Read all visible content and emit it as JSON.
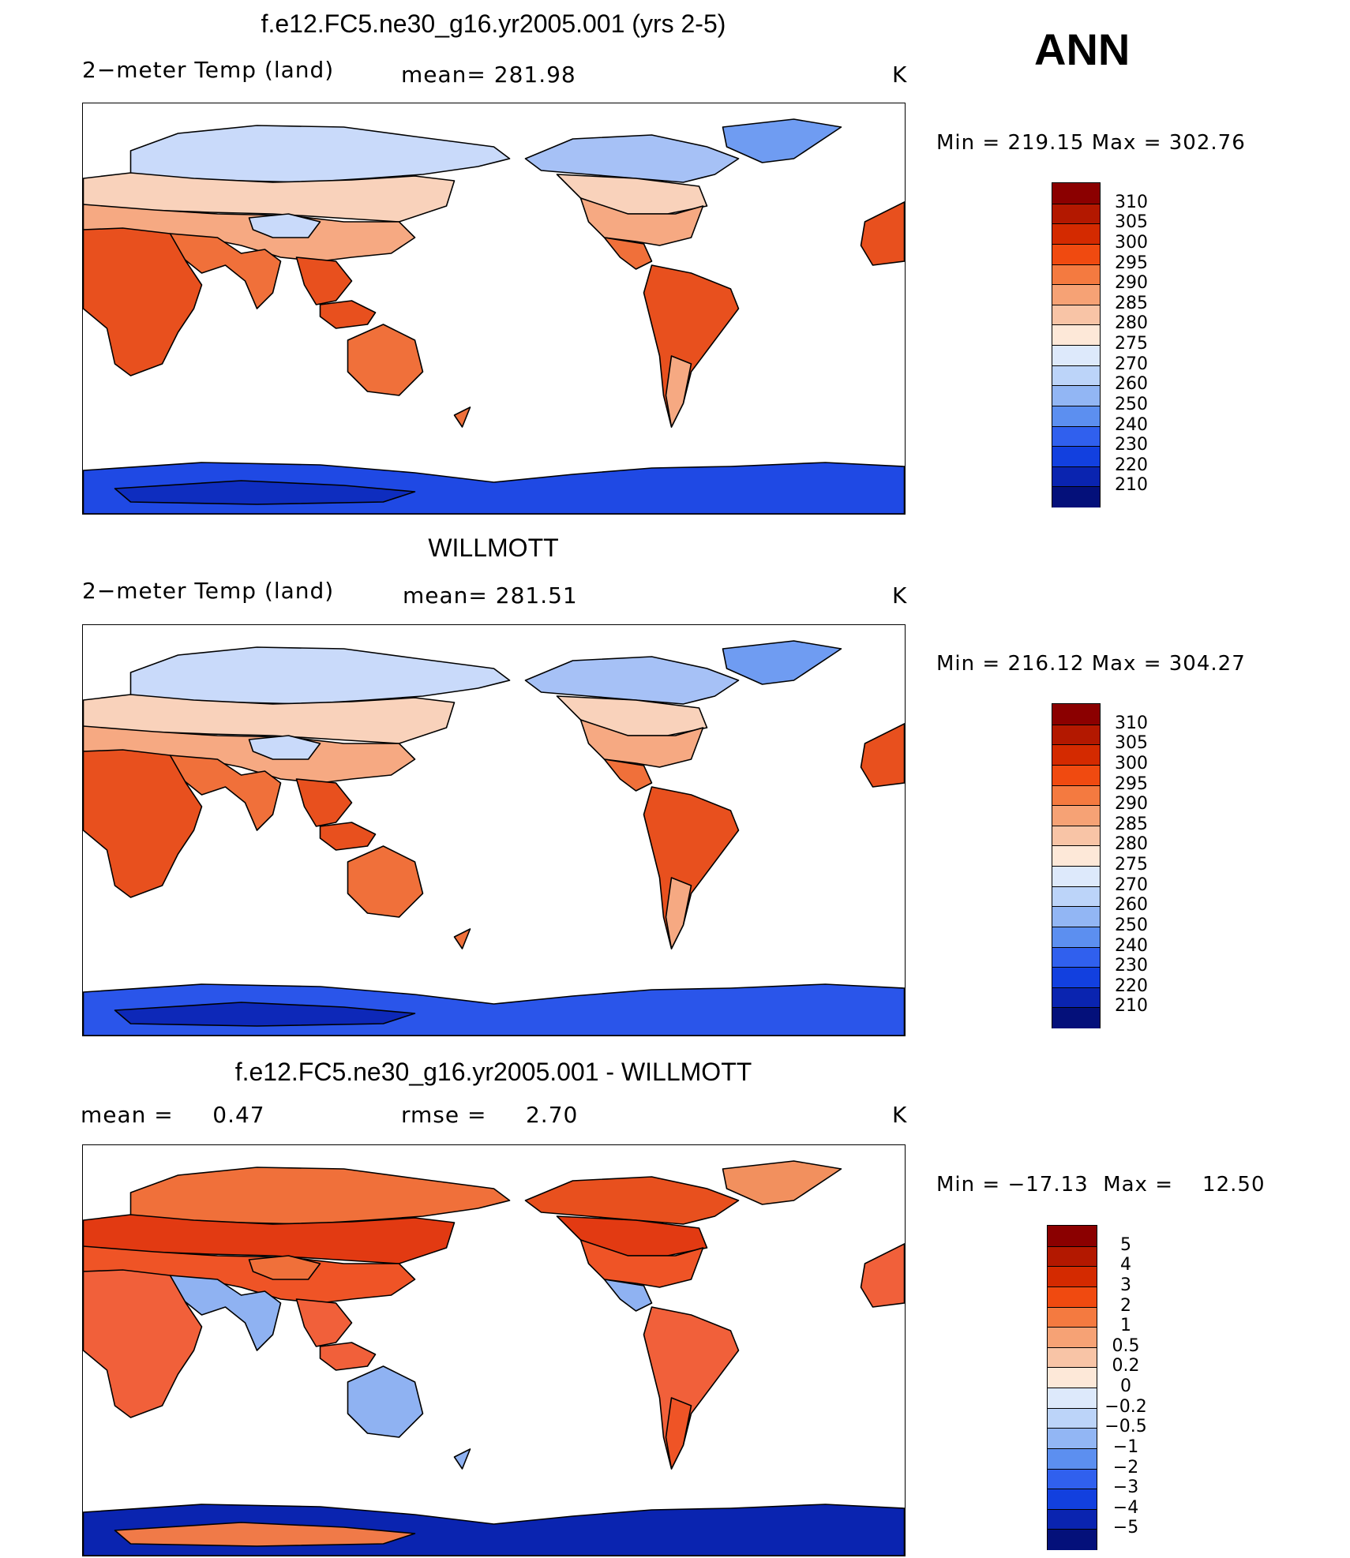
{
  "season": "ANN",
  "panels": [
    {
      "title": "f.e12.FC5.ne30_g16.yr2005.001 (yrs 2-5)",
      "left_label": "2−meter Temp (land)",
      "mid_label": "mean= 281.98",
      "unit": "K",
      "minmax": "Min = 219.15  Max = 302.76",
      "field": "model"
    },
    {
      "title": "WILLMOTT",
      "left_label": "2−meter Temp (land)",
      "mid_label": "mean= 281.51",
      "unit": "K",
      "minmax": "Min = 216.12  Max = 304.27",
      "field": "obs"
    },
    {
      "title": "f.e12.FC5.ne30_g16.yr2005.001 - WILLMOTT",
      "left_label": "mean =     0.47",
      "mid_label": "rmse =     2.70",
      "unit": "K",
      "minmax": "Min = −17.13  Max =    12.50",
      "field": "diff"
    }
  ],
  "colorbars": {
    "abs": {
      "labels": [
        "310",
        "305",
        "300",
        "295",
        "290",
        "285",
        "280",
        "275",
        "270",
        "260",
        "250",
        "240",
        "230",
        "220",
        "210"
      ],
      "colors": [
        "#8b0000",
        "#b31800",
        "#d42a00",
        "#f04a10",
        "#f47a40",
        "#f6a275",
        "#f8c4a6",
        "#fde8d8",
        "#dde9fb",
        "#bcd4f9",
        "#92b6f4",
        "#5c8ff0",
        "#3060ee",
        "#1240df",
        "#0a24b0",
        "#04107a"
      ]
    },
    "diff": {
      "labels": [
        "5",
        "4",
        "3",
        "2",
        "1",
        "0.5",
        "0.2",
        "0",
        "−0.2",
        "−0.5",
        "−1",
        "−2",
        "−3",
        "−4",
        "−5"
      ],
      "colors": [
        "#8b0000",
        "#b31800",
        "#d42a00",
        "#f04a10",
        "#f47a40",
        "#f6a275",
        "#f8c4a6",
        "#fde8d8",
        "#dde9fb",
        "#bcd4f9",
        "#92b6f4",
        "#5c8ff0",
        "#3060ee",
        "#1240df",
        "#0a24b0",
        "#04107a"
      ]
    }
  },
  "map_colors": {
    "model": {
      "tropics": "#e8501e",
      "subtropics": "#f0703a",
      "midlat": "#f6a982",
      "cool": "#f9d2bb",
      "boreal": "#c9dafa",
      "arctic": "#a6c1f6",
      "ant": "#1f49e4",
      "ant_deep": "#0e2dbf",
      "greenland": "#6f9cf2"
    },
    "obs": {
      "tropics": "#e8501e",
      "subtropics": "#f0703a",
      "midlat": "#f6a982",
      "cool": "#f9d2bb",
      "boreal": "#c9dafa",
      "arctic": "#a6c1f6",
      "ant": "#2a55ea",
      "ant_deep": "#0d28b8",
      "greenland": "#6f9cf2"
    },
    "diff": {
      "tropics": "#f1603a",
      "subtropics": "#8fb2f2",
      "midlat": "#ef5426",
      "cool": "#e23a12",
      "boreal": "#f0703a",
      "arctic": "#e8501e",
      "ant": "#0a24b0",
      "ant_deep": "#f07a48",
      "greenland": "#f2905e"
    }
  }
}
